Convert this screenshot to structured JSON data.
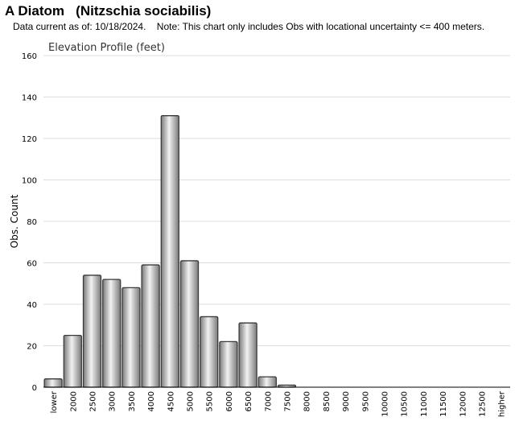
{
  "header": {
    "title": "A Diatom   (Nitzschia sociabilis)",
    "subtitle": "Data current as of: 10/18/2024.    Note: This chart only includes Obs with locational uncertainty <= 400 meters."
  },
  "chart_data": {
    "type": "bar",
    "title": "Elevation Profile (feet)",
    "xlabel": "",
    "ylabel": "Obs. Count",
    "ylim": [
      0,
      160
    ],
    "yticks": [
      0,
      20,
      40,
      60,
      80,
      100,
      120,
      140,
      160
    ],
    "grid": true,
    "categories": [
      "lower",
      "2000",
      "2500",
      "3000",
      "3500",
      "4000",
      "4500",
      "5000",
      "5500",
      "6000",
      "6500",
      "7000",
      "7500",
      "8000",
      "8500",
      "9000",
      "9500",
      "10000",
      "10500",
      "11000",
      "11500",
      "12000",
      "12500",
      "higher"
    ],
    "values": [
      4,
      25,
      54,
      52,
      48,
      59,
      131,
      61,
      34,
      22,
      31,
      5,
      1,
      0,
      0,
      0,
      0,
      0,
      0,
      0,
      0,
      0,
      0,
      0
    ],
    "colors": {
      "bar_light": "#f2f2f2",
      "bar_dark": "#7a7a7a",
      "bar_stroke": "#3a3a3a",
      "grid": "#dddddd",
      "axis": "#000000"
    }
  }
}
